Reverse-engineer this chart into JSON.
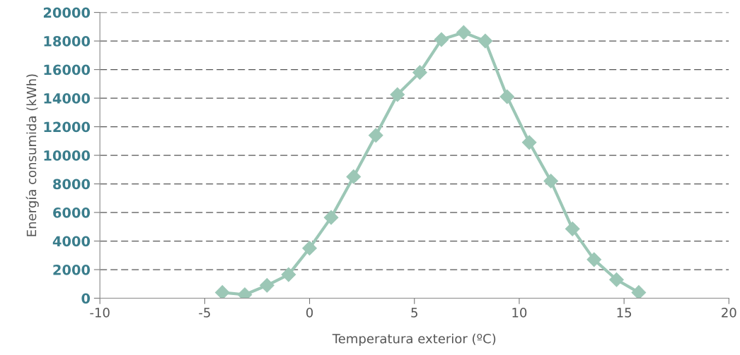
{
  "chart_data": {
    "type": "line",
    "xlabel": "Temperatura exterior (ºC)",
    "ylabel": "Energía consumida (kWh)",
    "x": [
      -4.16,
      -3.09,
      -2.03,
      -1.0,
      0.0,
      1.03,
      2.1,
      3.16,
      4.19,
      5.26,
      6.29,
      7.35,
      8.38,
      9.42,
      10.48,
      11.51,
      12.54,
      13.57,
      14.64,
      15.7
    ],
    "series": [
      {
        "color": "#9cc7b6",
        "values": [
          400,
          250,
          900,
          1650,
          3500,
          5650,
          8500,
          11400,
          14250,
          15800,
          18100,
          18600,
          18000,
          14100,
          10900,
          8200,
          4850,
          2700,
          1300,
          400
        ]
      }
    ],
    "xlim": [
      -10,
      20
    ],
    "xticks": [
      -10,
      -5,
      0,
      5,
      10,
      15,
      20
    ],
    "ylim": [
      0,
      20000
    ],
    "yticks": [
      0,
      2000,
      4000,
      6000,
      8000,
      10000,
      12000,
      14000,
      16000,
      18000,
      20000
    ],
    "grid": "y",
    "marker": "diamond",
    "line_style": "solid"
  }
}
